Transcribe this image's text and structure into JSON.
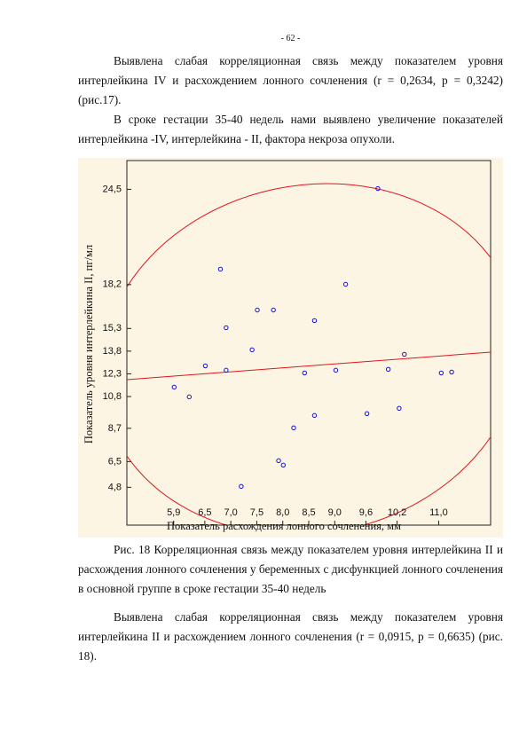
{
  "page_number": "- 62 -",
  "paragraphs": [
    "Выявлена слабая корреляционная связь между показателем уровня интерлейкина IV и расхождением лонного сочленения (r = 0,2634, p = 0,3242) (рис.17).",
    "В сроке гестации 35-40 недель нами выявлено увеличение показателей интерлейкина -IV,  интерлейкина - II, фактора некроза опухоли."
  ],
  "chart_data": {
    "type": "scatter",
    "x_label": "Показатель расхождения лонного сочленения, мм",
    "y_label": "Показатель уровня интерлейкина II, пг/мл",
    "xlim": [
      5.0,
      12.0
    ],
    "ylim": [
      2.3,
      26.4
    ],
    "xticks": [
      {
        "value": 5.9,
        "label": "5,9"
      },
      {
        "value": 6.5,
        "label": "6,5"
      },
      {
        "value": 7.0,
        "label": "7,0"
      },
      {
        "value": 7.5,
        "label": "7,5"
      },
      {
        "value": 8.0,
        "label": "8,0"
      },
      {
        "value": 8.5,
        "label": "8,5"
      },
      {
        "value": 9.0,
        "label": "9,0"
      },
      {
        "value": 9.6,
        "label": "9,6"
      },
      {
        "value": 10.2,
        "label": "10,2"
      },
      {
        "value": 11.0,
        "label": "11,0"
      }
    ],
    "yticks": [
      {
        "value": 4.8,
        "label": "4,8"
      },
      {
        "value": 6.5,
        "label": "6,5"
      },
      {
        "value": 8.7,
        "label": "8,7"
      },
      {
        "value": 10.8,
        "label": "10,8"
      },
      {
        "value": 12.3,
        "label": "12,3"
      },
      {
        "value": 13.8,
        "label": "13,8"
      },
      {
        "value": 15.3,
        "label": "15,3"
      },
      {
        "value": 18.2,
        "label": "18,2"
      },
      {
        "value": 24.5,
        "label": "24,5"
      }
    ],
    "series": [
      {
        "color": "#1010e0",
        "x": [
          5.91,
          6.2,
          6.51,
          6.8,
          6.91,
          6.91,
          7.2,
          7.41,
          7.51,
          7.82,
          7.92,
          8.01,
          8.21,
          8.42,
          8.61,
          8.61,
          9.02,
          9.21,
          9.62,
          9.83,
          10.03,
          10.24,
          10.34,
          11.05,
          11.25
        ],
        "values": [
          11.42,
          10.78,
          12.83,
          19.22,
          15.35,
          12.54,
          4.86,
          13.89,
          16.52,
          16.52,
          6.56,
          6.27,
          8.73,
          12.36,
          15.82,
          9.55,
          12.54,
          18.22,
          9.67,
          24.55,
          12.6,
          10.02,
          13.59,
          12.36,
          12.42
        ]
      }
    ],
    "fit_color": "#e0141b",
    "background": "#fdf5e4"
  },
  "caption": "Рис. 18 Корреляционная связь между показателем уровня интерлейкина II и расхождения лонного сочленения у беременных с дисфункцией лонного сочленения в основной группе в сроке гестации 35-40 недель",
  "paragraphs_after": [
    "Выявлена слабая корреляционная связь между показателем уровня интерлейкина II и расхождением лонного сочленения (r = 0,0915, p = 0,6635) (рис. 18)."
  ]
}
